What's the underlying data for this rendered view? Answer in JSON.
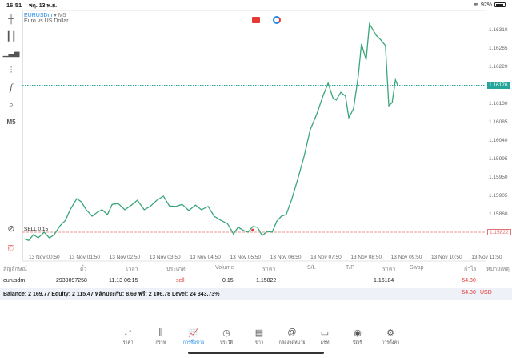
{
  "status": {
    "time": "16:51",
    "date": "พฤ. 13 พ.ย.",
    "battery": "92%"
  },
  "chart": {
    "symbol": "EURUSDm",
    "timeframe_label": "M5",
    "description": "Euro vs US Dollar",
    "tf_button": "M5",
    "sell_label": "SELL 0.15",
    "current_price": "1.16176",
    "sell_price": "1.15822",
    "colors": {
      "line": "#3aa57a",
      "current": "#26a69a",
      "sell": "#e57373",
      "accent": "#1e88e5"
    }
  },
  "chart_data": {
    "type": "line",
    "title": "EURUSDm, M5",
    "x_unit": "minutes since 13 Nov 00:50",
    "ylim": [
      1.15805,
      1.16335
    ],
    "y_ticks": [
      "1.16310",
      "1.16265",
      "1.16220",
      "1.16130",
      "1.16085",
      "1.16040",
      "1.15995",
      "1.15950",
      "1.15905",
      "1.15860"
    ],
    "x_ticks": [
      "13 Nov 00:50",
      "13 Nov 01:50",
      "13 Nov 02:50",
      "13 Nov 03:50",
      "13 Nov 04:50",
      "13 Nov 05:50",
      "13 Nov 06:50",
      "13 Nov 07:50",
      "13 Nov 08:50",
      "13 Nov 09:50",
      "13 Nov 10:50",
      "13 Nov 11:50"
    ],
    "points": [
      [
        -31,
        1.15801
      ],
      [
        -24,
        1.15797
      ],
      [
        -17,
        1.15811
      ],
      [
        -10,
        1.15803
      ],
      [
        -1,
        1.15817
      ],
      [
        7,
        1.15803
      ],
      [
        14,
        1.15811
      ],
      [
        23,
        1.15833
      ],
      [
        31,
        1.15846
      ],
      [
        38,
        1.15872
      ],
      [
        48,
        1.15899
      ],
      [
        55,
        1.15891
      ],
      [
        62,
        1.15872
      ],
      [
        71,
        1.15856
      ],
      [
        79,
        1.15866
      ],
      [
        86,
        1.15872
      ],
      [
        94,
        1.1586
      ],
      [
        101,
        1.15885
      ],
      [
        110,
        1.15887
      ],
      [
        120,
        1.15872
      ],
      [
        130,
        1.15883
      ],
      [
        139,
        1.15895
      ],
      [
        149,
        1.15872
      ],
      [
        158,
        1.1588
      ],
      [
        168,
        1.15895
      ],
      [
        178,
        1.15905
      ],
      [
        187,
        1.15881
      ],
      [
        197,
        1.1588
      ],
      [
        206,
        1.15885
      ],
      [
        216,
        1.1587
      ],
      [
        226,
        1.15883
      ],
      [
        235,
        1.15872
      ],
      [
        245,
        1.1588
      ],
      [
        254,
        1.15856
      ],
      [
        264,
        1.15846
      ],
      [
        274,
        1.15838
      ],
      [
        283,
        1.15813
      ],
      [
        290,
        1.15829
      ],
      [
        298,
        1.15821
      ],
      [
        305,
        1.15817
      ],
      [
        312,
        1.15831
      ],
      [
        319,
        1.15829
      ],
      [
        326,
        1.15809
      ],
      [
        334,
        1.15819
      ],
      [
        341,
        1.15817
      ],
      [
        348,
        1.15844
      ],
      [
        355,
        1.15856
      ],
      [
        362,
        1.1586
      ],
      [
        370,
        1.15895
      ],
      [
        379,
        1.15944
      ],
      [
        389,
        1.16003
      ],
      [
        398,
        1.16067
      ],
      [
        408,
        1.16106
      ],
      [
        418,
        1.16153
      ],
      [
        425,
        1.16181
      ],
      [
        432,
        1.16146
      ],
      [
        437,
        1.1614
      ],
      [
        444,
        1.16159
      ],
      [
        451,
        1.1615
      ],
      [
        456,
        1.16097
      ],
      [
        463,
        1.16118
      ],
      [
        470,
        1.16196
      ],
      [
        475,
        1.16277
      ],
      [
        482,
        1.16238
      ],
      [
        487,
        1.16326
      ],
      [
        497,
        1.16298
      ],
      [
        504,
        1.16287
      ],
      [
        511,
        1.16273
      ],
      [
        516,
        1.16126
      ],
      [
        521,
        1.16134
      ],
      [
        526,
        1.16189
      ],
      [
        530,
        1.16173
      ]
    ],
    "sell_entry": {
      "x": 312,
      "price": 1.15822
    }
  },
  "table": {
    "headers": [
      "สัญลักษณ์",
      "ตั๋ว",
      "เวลา",
      "ประเภท",
      "Volume",
      "ราคา",
      "S/L",
      "T/P",
      "ราคา",
      "Swap",
      "กำไร",
      "หมายเหตุ"
    ],
    "row": {
      "symbol": "eurusdm",
      "ticket": "2939097258",
      "time": "11.13 06:15",
      "type": "sell",
      "volume": "0.15",
      "open_price": "1.15822",
      "current_price": "1.16184",
      "profit": "-54.30"
    },
    "balance": "Balance: 2 169.77 Equity: 2 115.47 หลักประกัน: 8.69 ฟรี: 2 106.78 Level: 24 343.73%",
    "total": "-54.30",
    "currency": "USD"
  },
  "nav": [
    {
      "label": "ราคา",
      "icon": "↓↑"
    },
    {
      "label": "กราฟ",
      "icon": "⫼"
    },
    {
      "label": "การซื้อขาย",
      "icon": "📈"
    },
    {
      "label": "ประวัติ",
      "icon": "◷"
    },
    {
      "label": "ข่าว",
      "icon": "▤"
    },
    {
      "label": "กล่องจดหมาย",
      "icon": "@"
    },
    {
      "label": "แชท",
      "icon": "▭"
    },
    {
      "label": "บัญชี",
      "icon": "◉"
    },
    {
      "label": "การตั้งค่า",
      "icon": "⚙"
    }
  ]
}
